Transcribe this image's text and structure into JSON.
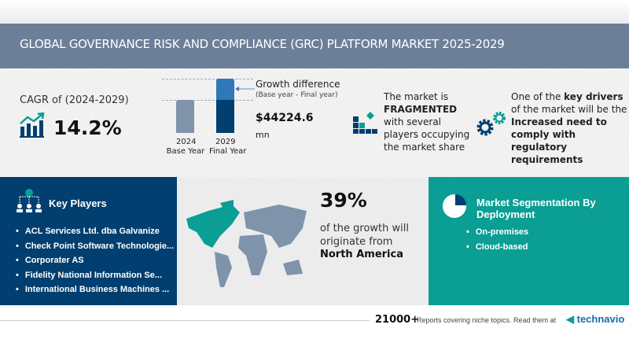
{
  "header": {
    "title": "GLOBAL GOVERNANCE RISK AND COMPLIANCE (GRC) PLATFORM MARKET 2025-2029"
  },
  "cagr": {
    "label": "CAGR of (2024-2029)",
    "value": "14.2%",
    "icon": "growth-chart-icon"
  },
  "growth": {
    "title": "Growth difference",
    "subtitle": "(Base year - Final year)",
    "value": "$44224.6",
    "unit": "mn",
    "bars": [
      {
        "year": "2024",
        "label": "Base Year"
      },
      {
        "year": "2029",
        "label": "Final Year"
      }
    ]
  },
  "market": {
    "line1": "The market is",
    "bold": "FRAGMENTED",
    "line3": "with several",
    "line4": "players occupying",
    "line5": "the market share",
    "icon": "blocks-icon"
  },
  "drivers": {
    "line1a": "One of the ",
    "line1b": "key drivers",
    "line2": "of the market will be the",
    "b1": "Increased need to",
    "b2": "comply with",
    "b3": "regulatory",
    "b4": "requirements",
    "icon": "gears-icon"
  },
  "key_players": {
    "title": "Key Players",
    "icon": "org-chart-icon",
    "items": [
      "ACL Services Ltd. dba Galvanize",
      "Check Point Software Technologie...",
      "Corporater AS",
      "Fidelity National Information Se...",
      "International Business Machines ..."
    ]
  },
  "region": {
    "percent": "39%",
    "line1": "of the growth will",
    "line2": "originate from",
    "name": "North America",
    "icon": "world-map-icon"
  },
  "segmentation": {
    "title1": "Market Segmentation By",
    "title2": "Deployment",
    "icon": "pie-chart-icon",
    "items": [
      "On-premises",
      "Cloud-based"
    ]
  },
  "footer": {
    "count": "21000+",
    "text": "Reports covering niche topics. Read them at",
    "brand": "technavio"
  },
  "colors": {
    "navy": "#003f70",
    "teal": "#0a9e94",
    "header": "#6b7f99"
  }
}
